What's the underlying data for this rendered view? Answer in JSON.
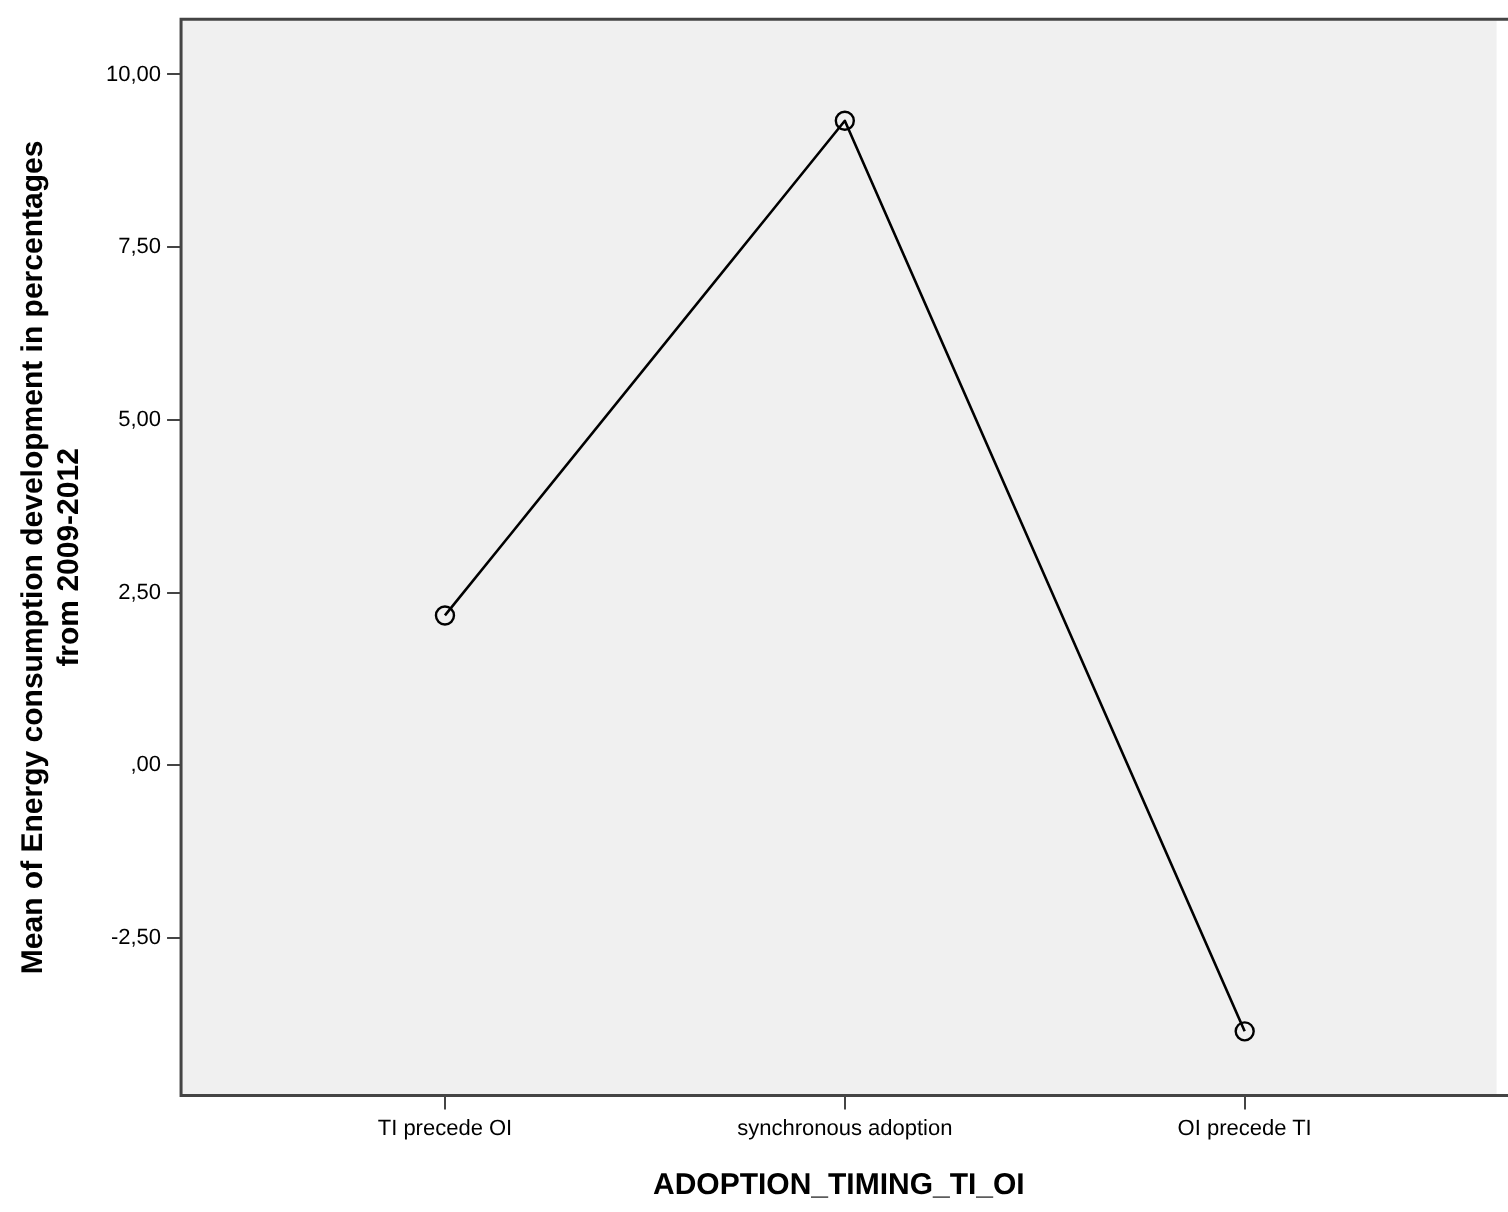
{
  "chart_data": {
    "type": "line",
    "xlabel": "ADOPTION_TIMING_TI_OI",
    "ylabel": "Mean of Energy consumption development in percentages from 2009-2012",
    "categories": [
      "TI precede OI",
      "synchronous adoption",
      "OI precede TI"
    ],
    "series": [
      {
        "color": "#000000",
        "values": [
          2.17,
          9.33,
          -3.85
        ]
      }
    ],
    "ylim": [
      -4.78,
      10.8
    ],
    "yticks": [
      {
        "value": -2.5,
        "label": "-2,50"
      },
      {
        "value": 0,
        "label": ",00"
      },
      {
        "value": 2.5,
        "label": "2,50"
      },
      {
        "value": 5,
        "label": "5,00"
      },
      {
        "value": 7.5,
        "label": "7,50"
      },
      {
        "value": 10,
        "label": "10,00"
      }
    ],
    "grid": false,
    "legend": false,
    "marker": "circle",
    "line_style": "solid"
  }
}
